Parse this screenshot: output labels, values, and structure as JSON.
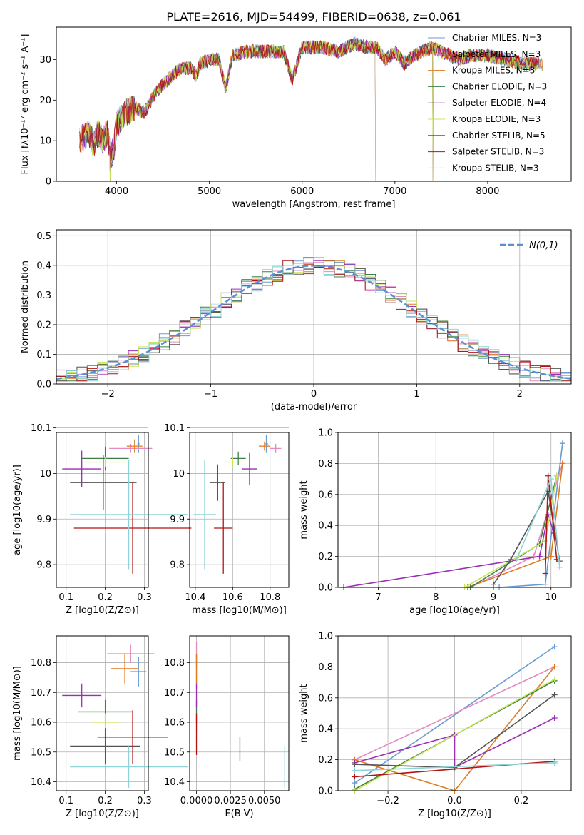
{
  "chart_data": [
    {
      "type": "line",
      "title": "PLATE=2616, MJD=54499, FIBERID=0638, z=0.061",
      "xlabel": "wavelength [Angstrom, rest frame]",
      "ylabel": "Flux [fλ10⁻¹⁷ erg cm⁻² s⁻¹ A⁻¹]",
      "xlim": [
        3350,
        8900
      ],
      "ylim": [
        0,
        38
      ],
      "xticks": [
        4000,
        5000,
        6000,
        7000,
        8000
      ],
      "yticks": [
        0,
        10,
        20,
        30
      ],
      "grid": false,
      "legend_position": "upper right",
      "series": [
        {
          "name": "Chabrier MILES, N_SSP=3",
          "color": "#6a9bd1"
        },
        {
          "name": "Salpeter MILES, N_SSP=3",
          "color": "#e48bbf"
        },
        {
          "name": "Kroupa MILES, N_SSP=3",
          "color": "#e07a20"
        },
        {
          "name": "Chabrier ELODIE, N_SSP=3",
          "color": "#3f7f46"
        },
        {
          "name": "Salpeter ELODIE, N_SSP=4",
          "color": "#9a2fb4"
        },
        {
          "name": "Kroupa ELODIE, N_SSP=3",
          "color": "#c7e55a"
        },
        {
          "name": "Chabrier STELIB, N_SSP=5",
          "color": "#555555"
        },
        {
          "name": "Salpeter STELIB, N_SSP=3",
          "color": "#b01515"
        },
        {
          "name": "Kroupa STELIB, N_SSP=3",
          "color": "#8fd3d6"
        }
      ],
      "spectrum_anchors": {
        "x": [
          3600,
          3650,
          3700,
          3750,
          3800,
          3850,
          3900,
          3935,
          3970,
          4000,
          4100,
          4200,
          4300,
          4400,
          4500,
          4600,
          4700,
          4800,
          4861,
          4900,
          5000,
          5100,
          5175,
          5250,
          5400,
          5600,
          5800,
          5893,
          6000,
          6200,
          6400,
          6563,
          6700,
          6800,
          6900,
          7000,
          7100,
          7200,
          7400,
          7600,
          7700,
          7800,
          8000,
          8200,
          8400,
          8600
        ],
        "y": [
          10,
          11,
          12,
          9,
          12,
          10,
          12,
          6,
          8,
          14,
          17,
          18,
          17,
          21,
          24,
          26,
          28,
          28,
          26,
          29,
          30,
          30,
          23,
          31,
          32,
          32,
          32,
          25,
          33,
          33,
          32,
          34,
          33,
          33,
          30,
          32,
          29,
          31,
          33,
          31,
          30,
          31,
          31,
          30,
          29,
          29
        ]
      },
      "features": [
        {
          "x": 3930,
          "y_min": 0
        },
        {
          "x": 6790,
          "y_min": 0
        },
        {
          "x": 7410,
          "y_min": 0
        }
      ]
    },
    {
      "type": "line",
      "xlabel": "(data-model)/error",
      "ylabel": "Normed distribution",
      "xlim": [
        -2.5,
        2.5
      ],
      "ylim": [
        0,
        0.52
      ],
      "xticks": [
        -2,
        -1,
        0,
        1,
        2
      ],
      "yticks": [
        0.0,
        0.1,
        0.2,
        0.3,
        0.4,
        0.5
      ],
      "grid": true,
      "legend_position": "upper right",
      "curve": {
        "name": "N(0,1)",
        "color": "#5b8ed6",
        "style": "dashed"
      },
      "histogram": {
        "bin_width": 0.1,
        "x_start": -2.5,
        "note_colors": [
          "#6a9bd1",
          "#e48bbf",
          "#e07a20",
          "#3f7f46",
          "#9a2fb4",
          "#c7e55a",
          "#555555",
          "#b01515",
          "#8fd3d6"
        ]
      }
    },
    {
      "type": "scatter",
      "xlabel": "Z [log10(Z/Z⊙)]",
      "ylabel": "age  [log10(age/yr)]",
      "xlim": [
        0.075,
        0.31
      ],
      "ylim": [
        9.75,
        10.09
      ],
      "xticks": [
        0.1,
        0.2,
        0.3
      ],
      "yticks": [
        9.8,
        9.9,
        10.0,
        10.1
      ],
      "grid": true,
      "points": [
        {
          "x": 0.285,
          "xerr": 0.003,
          "y": 10.065,
          "yerr": 0.02,
          "color": "#6a9bd1"
        },
        {
          "x": 0.265,
          "xerr": 0.055,
          "y": 10.055,
          "yerr": 0.01,
          "color": "#e48bbf"
        },
        {
          "x": 0.275,
          "xerr": 0.02,
          "y": 10.06,
          "yerr": 0.015,
          "color": "#e07a20"
        },
        {
          "x": 0.2,
          "xerr": 0.06,
          "y": 10.033,
          "yerr": 0.025,
          "color": "#3f7f46"
        },
        {
          "x": 0.14,
          "xerr": 0.05,
          "y": 10.01,
          "yerr": 0.04,
          "color": "#9a2fb4"
        },
        {
          "x": 0.2,
          "xerr": 0.055,
          "y": 10.025,
          "yerr": 0.01,
          "color": "#c7e55a"
        },
        {
          "x": 0.195,
          "xerr": 0.085,
          "y": 9.98,
          "yerr": 0.06,
          "color": "#555555"
        },
        {
          "x": 0.27,
          "xerr": 0.15,
          "y": 9.88,
          "yerr": 0.1,
          "color": "#b01515"
        },
        {
          "x": 0.26,
          "xerr": 0.15,
          "y": 9.91,
          "yerr": 0.12,
          "color": "#8fd3d6"
        }
      ]
    },
    {
      "type": "scatter",
      "xlabel": "mass [log10(M/M⊙)]",
      "ylabel": "",
      "xlim": [
        10.37,
        10.9
      ],
      "ylim": [
        9.75,
        10.09
      ],
      "xticks": [
        10.4,
        10.6,
        10.8
      ],
      "yticks": [
        9.8,
        9.9,
        10.0,
        10.1
      ],
      "grid": true,
      "points": [
        {
          "x": 10.78,
          "xerr": 0.01,
          "y": 10.065,
          "yerr": 0.02,
          "color": "#6a9bd1"
        },
        {
          "x": 10.83,
          "xerr": 0.03,
          "y": 10.055,
          "yerr": 0.01,
          "color": "#e48bbf"
        },
        {
          "x": 10.77,
          "xerr": 0.03,
          "y": 10.06,
          "yerr": 0.01,
          "color": "#e07a20"
        },
        {
          "x": 10.63,
          "xerr": 0.04,
          "y": 10.033,
          "yerr": 0.015,
          "color": "#3f7f46"
        },
        {
          "x": 10.69,
          "xerr": 0.04,
          "y": 10.01,
          "yerr": 0.035,
          "color": "#9a2fb4"
        },
        {
          "x": 10.6,
          "xerr": 0.04,
          "y": 10.025,
          "yerr": 0.01,
          "color": "#c7e55a"
        },
        {
          "x": 10.52,
          "xerr": 0.04,
          "y": 9.98,
          "yerr": 0.04,
          "color": "#555555"
        },
        {
          "x": 10.55,
          "xerr": 0.05,
          "y": 9.88,
          "yerr": 0.1,
          "color": "#b01515"
        },
        {
          "x": 10.45,
          "xerr": 0.06,
          "y": 9.91,
          "yerr": 0.12,
          "color": "#8fd3d6"
        }
      ]
    },
    {
      "type": "line",
      "xlabel": "age  [log10(age/yr)]",
      "ylabel": "mass weight",
      "xlim": [
        6.3,
        10.35
      ],
      "ylim": [
        0,
        1
      ],
      "xticks": [
        7,
        8,
        9,
        10
      ],
      "yticks": [
        0.0,
        0.2,
        0.4,
        0.6,
        0.8,
        1.0
      ],
      "grid": true,
      "series": [
        {
          "color": "#6a9bd1",
          "x": [
            9.1,
            9.9,
            10.2
          ],
          "y": [
            0.0,
            0.02,
            0.93
          ]
        },
        {
          "color": "#e48bbf",
          "x": [
            8.6,
            9.7,
            10.2
          ],
          "y": [
            0.0,
            0.2,
            0.8
          ]
        },
        {
          "color": "#e07a20",
          "x": [
            8.55,
            10.0,
            10.2
          ],
          "y": [
            0.0,
            0.2,
            0.8
          ]
        },
        {
          "color": "#3f7f46",
          "x": [
            8.6,
            9.8,
            10.1
          ],
          "y": [
            0.0,
            0.28,
            0.72
          ]
        },
        {
          "color": "#9a2fb4",
          "x": [
            6.4,
            9.8,
            9.95,
            10.05
          ],
          "y": [
            0.0,
            0.2,
            0.47,
            0.35
          ]
        },
        {
          "color": "#c7e55a",
          "x": [
            8.5,
            9.9,
            10.1
          ],
          "y": [
            0.0,
            0.3,
            0.72
          ]
        },
        {
          "color": "#555555",
          "x": [
            9.0,
            9.3,
            9.95,
            10.15
          ],
          "y": [
            0.02,
            0.18,
            0.62,
            0.17
          ]
        },
        {
          "color": "#b01515",
          "x": [
            9.9,
            9.95,
            10.1
          ],
          "y": [
            0.09,
            0.72,
            0.18
          ]
        },
        {
          "color": "#8fd3d6",
          "x": [
            9.4,
            10.0,
            10.15
          ],
          "y": [
            0.18,
            0.7,
            0.13
          ]
        }
      ]
    },
    {
      "type": "scatter",
      "xlabel": "Z [log10(Z/Z⊙)]",
      "ylabel": "mass [log10(M/M⊙)]",
      "xlim": [
        0.075,
        0.31
      ],
      "ylim": [
        10.37,
        10.89
      ],
      "xticks": [
        0.1,
        0.2,
        0.3
      ],
      "yticks": [
        10.4,
        10.5,
        10.6,
        10.7,
        10.8
      ],
      "grid": true,
      "points": [
        {
          "x": 0.285,
          "xerr": 0.02,
          "y": 10.77,
          "yerr": 0.05,
          "color": "#6a9bd1"
        },
        {
          "x": 0.265,
          "xerr": 0.06,
          "y": 10.83,
          "yerr": 0.03,
          "color": "#e48bbf"
        },
        {
          "x": 0.25,
          "xerr": 0.035,
          "y": 10.78,
          "yerr": 0.05,
          "color": "#e07a20"
        },
        {
          "x": 0.2,
          "xerr": 0.07,
          "y": 10.635,
          "yerr": 0.04,
          "color": "#3f7f46"
        },
        {
          "x": 0.14,
          "xerr": 0.05,
          "y": 10.69,
          "yerr": 0.04,
          "color": "#9a2fb4"
        },
        {
          "x": 0.2,
          "xerr": 0.035,
          "y": 10.6,
          "yerr": 0.03,
          "color": "#c7e55a"
        },
        {
          "x": 0.2,
          "xerr": 0.09,
          "y": 10.52,
          "yerr": 0.06,
          "color": "#555555"
        },
        {
          "x": 0.27,
          "xerr": 0.09,
          "y": 10.55,
          "yerr": 0.09,
          "color": "#b01515"
        },
        {
          "x": 0.26,
          "xerr": 0.15,
          "y": 10.45,
          "yerr": 0.07,
          "color": "#8fd3d6"
        }
      ]
    },
    {
      "type": "scatter",
      "xlabel": "E(B-V)",
      "ylabel": "",
      "xlim": [
        -0.0005,
        0.0068
      ],
      "ylim": [
        10.37,
        10.89
      ],
      "xticks": [
        0.0,
        0.0025,
        0.005
      ],
      "xtick_labels": [
        "0.0000",
        "0.0025",
        "0.0050"
      ],
      "yticks": [
        10.4,
        10.5,
        10.6,
        10.7,
        10.8
      ],
      "grid": true,
      "points": [
        {
          "x": 0.0,
          "y": 10.77,
          "yerr": 0.06,
          "color": "#6a9bd1"
        },
        {
          "x": 0.0,
          "y": 10.83,
          "yerr": 0.04,
          "color": "#e48bbf"
        },
        {
          "x": 0.0,
          "y": 10.78,
          "yerr": 0.05,
          "color": "#e07a20"
        },
        {
          "x": 0.0,
          "y": 10.635,
          "yerr": 0.04,
          "color": "#3f7f46"
        },
        {
          "x": 0.0,
          "y": 10.69,
          "yerr": 0.04,
          "color": "#9a2fb4"
        },
        {
          "x": 0.0,
          "y": 10.6,
          "yerr": 0.03,
          "color": "#c7e55a"
        },
        {
          "x": 0.0032,
          "y": 10.51,
          "yerr": 0.04,
          "color": "#555555"
        },
        {
          "x": 0.0,
          "y": 10.56,
          "yerr": 0.07,
          "color": "#b01515"
        },
        {
          "x": 0.0065,
          "y": 10.45,
          "yerr": 0.07,
          "color": "#8fd3d6"
        }
      ]
    },
    {
      "type": "line",
      "xlabel": "Z [log10(Z/Z⊙)]",
      "ylabel": "mass weight",
      "xlim": [
        -0.35,
        0.35
      ],
      "ylim": [
        0,
        1
      ],
      "xticks": [
        -0.2,
        0.0,
        0.2
      ],
      "xtick_labels": [
        "−0.2",
        "0.0",
        "0.2"
      ],
      "yticks": [
        0.0,
        0.2,
        0.4,
        0.6,
        0.8,
        1.0
      ],
      "grid": true,
      "series": [
        {
          "color": "#6a9bd1",
          "x": [
            -0.3,
            0.3
          ],
          "y": [
            0.05,
            0.93
          ]
        },
        {
          "color": "#e48bbf",
          "x": [
            -0.3,
            0.3
          ],
          "y": [
            0.2,
            0.8
          ]
        },
        {
          "color": "#e07a20",
          "x": [
            -0.3,
            0.0,
            0.3
          ],
          "y": [
            0.2,
            0.0,
            0.8
          ]
        },
        {
          "color": "#3f7f46",
          "x": [
            -0.3,
            0.0,
            0.3
          ],
          "y": [
            0.01,
            0.36,
            0.71
          ]
        },
        {
          "color": "#9a2fb4",
          "x": [
            -0.3,
            0.0,
            0.0,
            0.3
          ],
          "y": [
            0.18,
            0.36,
            0.15,
            0.47
          ]
        },
        {
          "color": "#c7e55a",
          "x": [
            -0.3,
            0.3
          ],
          "y": [
            0.0,
            0.72
          ]
        },
        {
          "color": "#555555",
          "x": [
            -0.3,
            0.0,
            0.3
          ],
          "y": [
            0.17,
            0.15,
            0.62
          ]
        },
        {
          "color": "#b01515",
          "x": [
            -0.3,
            0.3
          ],
          "y": [
            0.09,
            0.19
          ]
        },
        {
          "color": "#8fd3d6",
          "x": [
            -0.3,
            0.3
          ],
          "y": [
            0.13,
            0.18
          ]
        }
      ]
    }
  ]
}
